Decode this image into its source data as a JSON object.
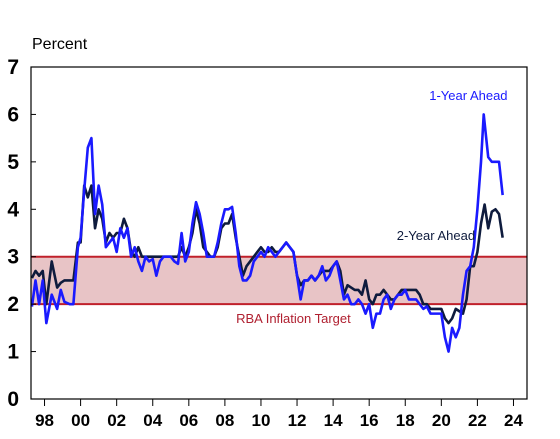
{
  "chart_data": {
    "type": "line",
    "ylabel": "Percent",
    "ylim": [
      0,
      7
    ],
    "yticks": [
      "0",
      "1",
      "2",
      "3",
      "4",
      "5",
      "6",
      "7"
    ],
    "xlim": [
      1997.25,
      2024.75
    ],
    "xticks": [
      {
        "value": 1998,
        "label": "98"
      },
      {
        "value": 2000,
        "label": "00"
      },
      {
        "value": 2002,
        "label": "02"
      },
      {
        "value": 2004,
        "label": "04"
      },
      {
        "value": 2006,
        "label": "06"
      },
      {
        "value": 2008,
        "label": "08"
      },
      {
        "value": 2010,
        "label": "10"
      },
      {
        "value": 2012,
        "label": "12"
      },
      {
        "value": 2014,
        "label": "14"
      },
      {
        "value": 2016,
        "label": "16"
      },
      {
        "value": 2018,
        "label": "18"
      },
      {
        "value": 2020,
        "label": "20"
      },
      {
        "value": 2022,
        "label": "22"
      },
      {
        "value": 2024,
        "label": "24"
      }
    ],
    "target_band": {
      "label": "RBA Inflation Target",
      "low": 2,
      "high": 3,
      "fill": "#e8c4c6",
      "line_color": "#c0202a"
    },
    "series": [
      {
        "name": "1-Year Ahead",
        "color": "#1a1aff",
        "points": [
          [
            1997.3,
            1.95
          ],
          [
            1997.5,
            2.5
          ],
          [
            1997.7,
            2.0
          ],
          [
            1997.9,
            2.5
          ],
          [
            1998.1,
            1.6
          ],
          [
            1998.4,
            2.2
          ],
          [
            1998.7,
            1.9
          ],
          [
            1998.9,
            2.3
          ],
          [
            1999.1,
            2.05
          ],
          [
            1999.4,
            2.0
          ],
          [
            1999.6,
            2.0
          ],
          [
            1999.85,
            3.2
          ],
          [
            2000.0,
            3.4
          ],
          [
            2000.2,
            4.4
          ],
          [
            2000.4,
            5.3
          ],
          [
            2000.6,
            5.5
          ],
          [
            2000.8,
            3.9
          ],
          [
            2001.0,
            4.5
          ],
          [
            2001.2,
            4.1
          ],
          [
            2001.4,
            3.2
          ],
          [
            2001.6,
            3.3
          ],
          [
            2001.8,
            3.4
          ],
          [
            2002.0,
            3.1
          ],
          [
            2002.2,
            3.6
          ],
          [
            2002.4,
            3.4
          ],
          [
            2002.6,
            3.6
          ],
          [
            2002.8,
            3.0
          ],
          [
            2003.0,
            3.2
          ],
          [
            2003.2,
            2.9
          ],
          [
            2003.4,
            2.7
          ],
          [
            2003.6,
            3.0
          ],
          [
            2003.8,
            2.9
          ],
          [
            2004.0,
            2.95
          ],
          [
            2004.2,
            2.6
          ],
          [
            2004.4,
            2.9
          ],
          [
            2004.6,
            3.0
          ],
          [
            2004.8,
            3.0
          ],
          [
            2005.0,
            3.0
          ],
          [
            2005.2,
            2.9
          ],
          [
            2005.4,
            2.85
          ],
          [
            2005.6,
            3.5
          ],
          [
            2005.8,
            2.9
          ],
          [
            2006.0,
            3.1
          ],
          [
            2006.2,
            3.7
          ],
          [
            2006.4,
            4.15
          ],
          [
            2006.6,
            3.9
          ],
          [
            2006.8,
            3.5
          ],
          [
            2007.0,
            3.0
          ],
          [
            2007.2,
            3.0
          ],
          [
            2007.4,
            3.0
          ],
          [
            2007.6,
            3.3
          ],
          [
            2007.8,
            3.7
          ],
          [
            2008.0,
            4.0
          ],
          [
            2008.2,
            4.0
          ],
          [
            2008.4,
            4.05
          ],
          [
            2008.6,
            3.5
          ],
          [
            2008.8,
            2.8
          ],
          [
            2009.0,
            2.5
          ],
          [
            2009.2,
            2.5
          ],
          [
            2009.4,
            2.6
          ],
          [
            2009.6,
            2.9
          ],
          [
            2009.8,
            3.0
          ],
          [
            2010.0,
            3.1
          ],
          [
            2010.2,
            3.0
          ],
          [
            2010.4,
            3.2
          ],
          [
            2010.6,
            3.1
          ],
          [
            2010.8,
            3.0
          ],
          [
            2011.0,
            3.1
          ],
          [
            2011.2,
            3.2
          ],
          [
            2011.4,
            3.3
          ],
          [
            2011.6,
            3.2
          ],
          [
            2011.8,
            3.1
          ],
          [
            2012.0,
            2.6
          ],
          [
            2012.2,
            2.1
          ],
          [
            2012.4,
            2.5
          ],
          [
            2012.6,
            2.5
          ],
          [
            2012.8,
            2.6
          ],
          [
            2013.0,
            2.5
          ],
          [
            2013.2,
            2.6
          ],
          [
            2013.4,
            2.8
          ],
          [
            2013.6,
            2.5
          ],
          [
            2013.8,
            2.6
          ],
          [
            2014.0,
            2.8
          ],
          [
            2014.2,
            2.9
          ],
          [
            2014.4,
            2.5
          ],
          [
            2014.6,
            2.1
          ],
          [
            2014.8,
            2.2
          ],
          [
            2015.0,
            2.0
          ],
          [
            2015.2,
            2.0
          ],
          [
            2015.4,
            2.1
          ],
          [
            2015.6,
            2.0
          ],
          [
            2015.8,
            1.8
          ],
          [
            2016.0,
            2.0
          ],
          [
            2016.2,
            1.5
          ],
          [
            2016.4,
            1.8
          ],
          [
            2016.6,
            1.8
          ],
          [
            2016.8,
            2.1
          ],
          [
            2017.0,
            2.2
          ],
          [
            2017.2,
            1.9
          ],
          [
            2017.4,
            2.1
          ],
          [
            2017.6,
            2.2
          ],
          [
            2017.8,
            2.2
          ],
          [
            2018.0,
            2.3
          ],
          [
            2018.2,
            2.1
          ],
          [
            2018.4,
            2.1
          ],
          [
            2018.6,
            2.1
          ],
          [
            2018.8,
            2.0
          ],
          [
            2019.0,
            1.9
          ],
          [
            2019.2,
            1.95
          ],
          [
            2019.4,
            1.8
          ],
          [
            2019.6,
            1.8
          ],
          [
            2019.8,
            1.8
          ],
          [
            2020.0,
            1.8
          ],
          [
            2020.2,
            1.3
          ],
          [
            2020.4,
            1.0
          ],
          [
            2020.6,
            1.5
          ],
          [
            2020.8,
            1.3
          ],
          [
            2021.0,
            1.5
          ],
          [
            2021.2,
            2.2
          ],
          [
            2021.4,
            2.7
          ],
          [
            2021.6,
            2.8
          ],
          [
            2021.8,
            3.2
          ],
          [
            2022.0,
            4.0
          ],
          [
            2022.2,
            5.0
          ],
          [
            2022.35,
            6.0
          ],
          [
            2022.6,
            5.1
          ],
          [
            2022.8,
            5.0
          ],
          [
            2023.0,
            5.0
          ],
          [
            2023.2,
            5.0
          ],
          [
            2023.4,
            4.3
          ]
        ]
      },
      {
        "name": "2-Year Ahead",
        "color": "#0e1b3d",
        "points": [
          [
            1997.3,
            2.55
          ],
          [
            1997.5,
            2.7
          ],
          [
            1997.7,
            2.6
          ],
          [
            1997.9,
            2.7
          ],
          [
            1998.1,
            2.0
          ],
          [
            1998.4,
            2.9
          ],
          [
            1998.7,
            2.35
          ],
          [
            1998.9,
            2.45
          ],
          [
            1999.1,
            2.5
          ],
          [
            1999.4,
            2.5
          ],
          [
            1999.6,
            2.5
          ],
          [
            1999.85,
            3.3
          ],
          [
            2000.0,
            3.3
          ],
          [
            2000.2,
            4.5
          ],
          [
            2000.4,
            4.25
          ],
          [
            2000.6,
            4.5
          ],
          [
            2000.8,
            3.6
          ],
          [
            2001.0,
            4.0
          ],
          [
            2001.2,
            3.8
          ],
          [
            2001.4,
            3.3
          ],
          [
            2001.6,
            3.5
          ],
          [
            2001.8,
            3.4
          ],
          [
            2002.0,
            3.5
          ],
          [
            2002.2,
            3.5
          ],
          [
            2002.4,
            3.8
          ],
          [
            2002.6,
            3.6
          ],
          [
            2002.8,
            3.1
          ],
          [
            2003.0,
            3.0
          ],
          [
            2003.2,
            3.2
          ],
          [
            2003.4,
            3.0
          ],
          [
            2003.6,
            3.0
          ],
          [
            2003.8,
            3.0
          ],
          [
            2004.0,
            3.0
          ],
          [
            2004.2,
            3.0
          ],
          [
            2004.4,
            3.0
          ],
          [
            2004.6,
            3.0
          ],
          [
            2004.8,
            3.0
          ],
          [
            2005.0,
            3.0
          ],
          [
            2005.2,
            3.0
          ],
          [
            2005.4,
            3.0
          ],
          [
            2005.6,
            3.2
          ],
          [
            2005.8,
            3.0
          ],
          [
            2006.0,
            3.2
          ],
          [
            2006.2,
            3.5
          ],
          [
            2006.4,
            4.0
          ],
          [
            2006.6,
            3.7
          ],
          [
            2006.8,
            3.2
          ],
          [
            2007.0,
            3.1
          ],
          [
            2007.2,
            3.0
          ],
          [
            2007.4,
            3.0
          ],
          [
            2007.6,
            3.2
          ],
          [
            2007.8,
            3.6
          ],
          [
            2008.0,
            3.7
          ],
          [
            2008.2,
            3.7
          ],
          [
            2008.4,
            3.9
          ],
          [
            2008.6,
            3.4
          ],
          [
            2008.8,
            3.0
          ],
          [
            2009.0,
            2.6
          ],
          [
            2009.2,
            2.8
          ],
          [
            2009.4,
            2.9
          ],
          [
            2009.6,
            3.0
          ],
          [
            2009.8,
            3.1
          ],
          [
            2010.0,
            3.2
          ],
          [
            2010.2,
            3.1
          ],
          [
            2010.4,
            3.1
          ],
          [
            2010.6,
            3.2
          ],
          [
            2010.8,
            3.1
          ],
          [
            2011.0,
            3.1
          ],
          [
            2011.2,
            3.2
          ],
          [
            2011.4,
            3.3
          ],
          [
            2011.6,
            3.2
          ],
          [
            2011.8,
            3.1
          ],
          [
            2012.0,
            2.6
          ],
          [
            2012.2,
            2.4
          ],
          [
            2012.4,
            2.5
          ],
          [
            2012.6,
            2.5
          ],
          [
            2012.8,
            2.6
          ],
          [
            2013.0,
            2.5
          ],
          [
            2013.2,
            2.6
          ],
          [
            2013.4,
            2.7
          ],
          [
            2013.6,
            2.7
          ],
          [
            2013.8,
            2.7
          ],
          [
            2014.0,
            2.8
          ],
          [
            2014.2,
            2.9
          ],
          [
            2014.4,
            2.7
          ],
          [
            2014.6,
            2.2
          ],
          [
            2014.8,
            2.4
          ],
          [
            2015.0,
            2.35
          ],
          [
            2015.2,
            2.3
          ],
          [
            2015.4,
            2.3
          ],
          [
            2015.6,
            2.2
          ],
          [
            2015.8,
            2.5
          ],
          [
            2016.0,
            2.1
          ],
          [
            2016.2,
            2.0
          ],
          [
            2016.4,
            2.2
          ],
          [
            2016.6,
            2.2
          ],
          [
            2016.8,
            2.3
          ],
          [
            2017.0,
            2.2
          ],
          [
            2017.2,
            2.1
          ],
          [
            2017.4,
            2.1
          ],
          [
            2017.6,
            2.2
          ],
          [
            2017.8,
            2.3
          ],
          [
            2018.0,
            2.3
          ],
          [
            2018.2,
            2.3
          ],
          [
            2018.4,
            2.3
          ],
          [
            2018.6,
            2.3
          ],
          [
            2018.8,
            2.2
          ],
          [
            2019.0,
            2.0
          ],
          [
            2019.2,
            2.0
          ],
          [
            2019.4,
            1.9
          ],
          [
            2019.6,
            1.9
          ],
          [
            2019.8,
            1.9
          ],
          [
            2020.0,
            1.9
          ],
          [
            2020.2,
            1.7
          ],
          [
            2020.4,
            1.6
          ],
          [
            2020.6,
            1.7
          ],
          [
            2020.8,
            1.9
          ],
          [
            2021.0,
            1.85
          ],
          [
            2021.2,
            1.8
          ],
          [
            2021.4,
            2.1
          ],
          [
            2021.6,
            2.8
          ],
          [
            2021.8,
            2.8
          ],
          [
            2022.0,
            3.1
          ],
          [
            2022.2,
            3.7
          ],
          [
            2022.4,
            4.1
          ],
          [
            2022.6,
            3.6
          ],
          [
            2022.8,
            3.95
          ],
          [
            2023.0,
            4.0
          ],
          [
            2023.2,
            3.9
          ],
          [
            2023.4,
            3.4
          ]
        ]
      }
    ],
    "annotations": [
      {
        "text": "1-Year Ahead",
        "series": "1-Year Ahead",
        "anchor_x": 2021.5,
        "anchor_y": 6.3,
        "color": "#1a1aff"
      },
      {
        "text": "2-Year Ahead",
        "series": "2-Year Ahead",
        "anchor_x": 2019.7,
        "anchor_y": 3.35,
        "color": "#0e1b3d"
      },
      {
        "text": "RBA Inflation Target",
        "series": "band",
        "anchor_x": 2011.8,
        "anchor_y": 1.6,
        "color": "#b02030"
      }
    ]
  }
}
